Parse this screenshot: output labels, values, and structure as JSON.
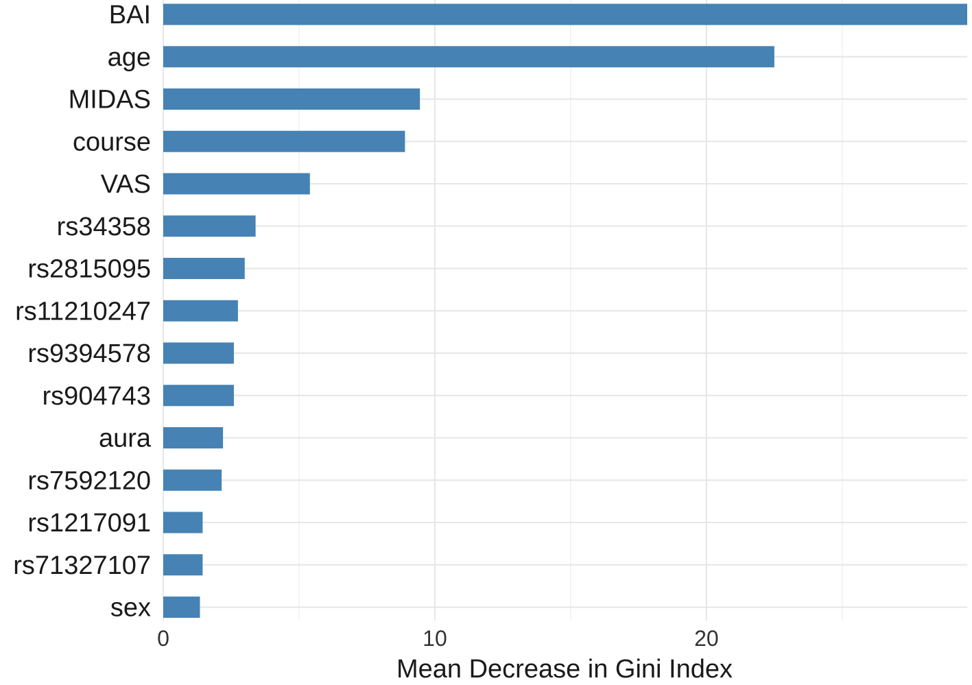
{
  "chart_data": {
    "type": "bar",
    "orientation": "horizontal",
    "categories": [
      "BAI",
      "age",
      "MIDAS",
      "course",
      "VAS",
      "rs34358",
      "rs2815095",
      "rs11210247",
      "rs9394578",
      "rs904743",
      "aura",
      "rs7592120",
      "rs1217091",
      "rs71327107",
      "sex"
    ],
    "values": [
      29.6,
      22.5,
      9.45,
      8.9,
      5.4,
      3.4,
      3.0,
      2.75,
      2.6,
      2.6,
      2.2,
      2.15,
      1.45,
      1.45,
      1.35
    ],
    "xlabel": "Mean Decrease in Gini Index",
    "ylabel": "",
    "title": "",
    "xticks": [
      0,
      10,
      20
    ],
    "xlim": [
      0,
      29.6
    ],
    "grid": true,
    "bar_color": "#4682b4"
  }
}
